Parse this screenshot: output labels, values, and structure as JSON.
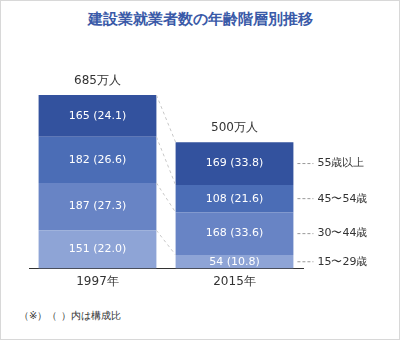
{
  "chart_data": {
    "type": "bar",
    "title": "建設業就業者数の年齢階層別推移",
    "note": "（※）（ ）内は構成比",
    "categories": [
      "1997年",
      "2015年"
    ],
    "stacked": true,
    "grid": false,
    "legend": "right",
    "tick_labels": "x",
    "data_labels": true,
    "ylim": [
      0,
      685
    ],
    "totals": [
      685,
      500
    ],
    "total_labels": [
      "685万人",
      "500万人"
    ],
    "series": [
      {
        "name": "15〜29歳",
        "color": "#8ea4d6",
        "values": [
          151,
          54
        ],
        "value_labels": [
          "151 (22.0)",
          "54 (10.8)"
        ]
      },
      {
        "name": "30〜44歳",
        "color": "#6884c5",
        "values": [
          187,
          168
        ],
        "value_labels": [
          "187 (27.3)",
          "168 (33.6)"
        ]
      },
      {
        "name": "45〜54歳",
        "color": "#4b6db6",
        "values": [
          182,
          108
        ],
        "value_labels": [
          "182 (26.6)",
          "108 (21.6)"
        ]
      },
      {
        "name": "55歳以上",
        "color": "#33529e",
        "values": [
          165,
          169
        ],
        "value_labels": [
          "165 (24.1)",
          "169 (33.8)"
        ]
      }
    ]
  }
}
